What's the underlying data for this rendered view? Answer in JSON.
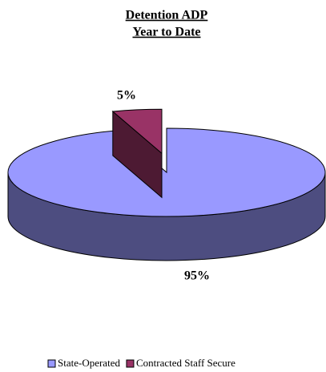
{
  "chart_data": {
    "type": "pie3d",
    "title": "Detention ADP",
    "subtitle": "Year to Date",
    "categories": [
      "State-Operated",
      "Contracted Staff Secure"
    ],
    "values": [
      95,
      5
    ],
    "value_labels": [
      "95%",
      "5%"
    ],
    "colors": [
      "#9999ff",
      "#993366"
    ],
    "legend": "bottom"
  }
}
